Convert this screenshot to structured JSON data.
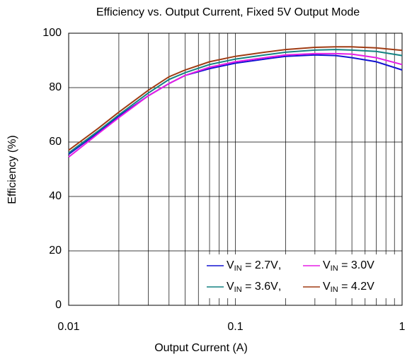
{
  "chart_data": {
    "type": "line",
    "title": "Efficiency vs. Output Current, Fixed 5V Output Mode",
    "x_label": "Output Current (A)",
    "y_label": "Efficiency (%)",
    "x": [
      0.01,
      0.015,
      0.02,
      0.03,
      0.04,
      0.05,
      0.07,
      0.1,
      0.15,
      0.2,
      0.3,
      0.4,
      0.5,
      0.7,
      1
    ],
    "series": [
      {
        "name": "VIN = 2.7V",
        "color": "#1414d2",
        "values": [
          55.5,
          63.5,
          69.5,
          77,
          81.5,
          84.5,
          87,
          89,
          90.5,
          91.5,
          92,
          91.8,
          91,
          89.5,
          86.5
        ]
      },
      {
        "name": "VIN = 3.0V",
        "color": "#e61ee6",
        "values": [
          54.5,
          63,
          69,
          77,
          81.5,
          84.5,
          87.5,
          89.5,
          91,
          92,
          92.5,
          92.5,
          92.3,
          91,
          88.5
        ]
      },
      {
        "name": "VIN = 3.6V",
        "color": "#148282",
        "values": [
          56,
          64,
          70,
          78,
          83,
          85.5,
          88.5,
          90.5,
          92,
          93,
          93.8,
          94,
          93.8,
          93.3,
          91.8
        ]
      },
      {
        "name": "VIN = 4.2V",
        "color": "#a03c14",
        "values": [
          57,
          65,
          71,
          79,
          84,
          86.5,
          89.5,
          91.5,
          93,
          94,
          94.8,
          95,
          95,
          94.6,
          93.7
        ]
      }
    ],
    "legend_separator": ",",
    "legend": "lower right",
    "xscale": "log",
    "xlim": [
      0.01,
      1
    ],
    "xticks": [
      0.01,
      0.1,
      1
    ],
    "xminorticks": [
      0.02,
      0.03,
      0.04,
      0.05,
      0.06,
      0.07,
      0.08,
      0.09,
      0.2,
      0.3,
      0.4,
      0.5,
      0.6,
      0.7,
      0.8,
      0.9
    ],
    "ylim": [
      0,
      100
    ],
    "yticks": [
      0,
      20,
      40,
      60,
      80,
      100
    ],
    "grid": true
  }
}
